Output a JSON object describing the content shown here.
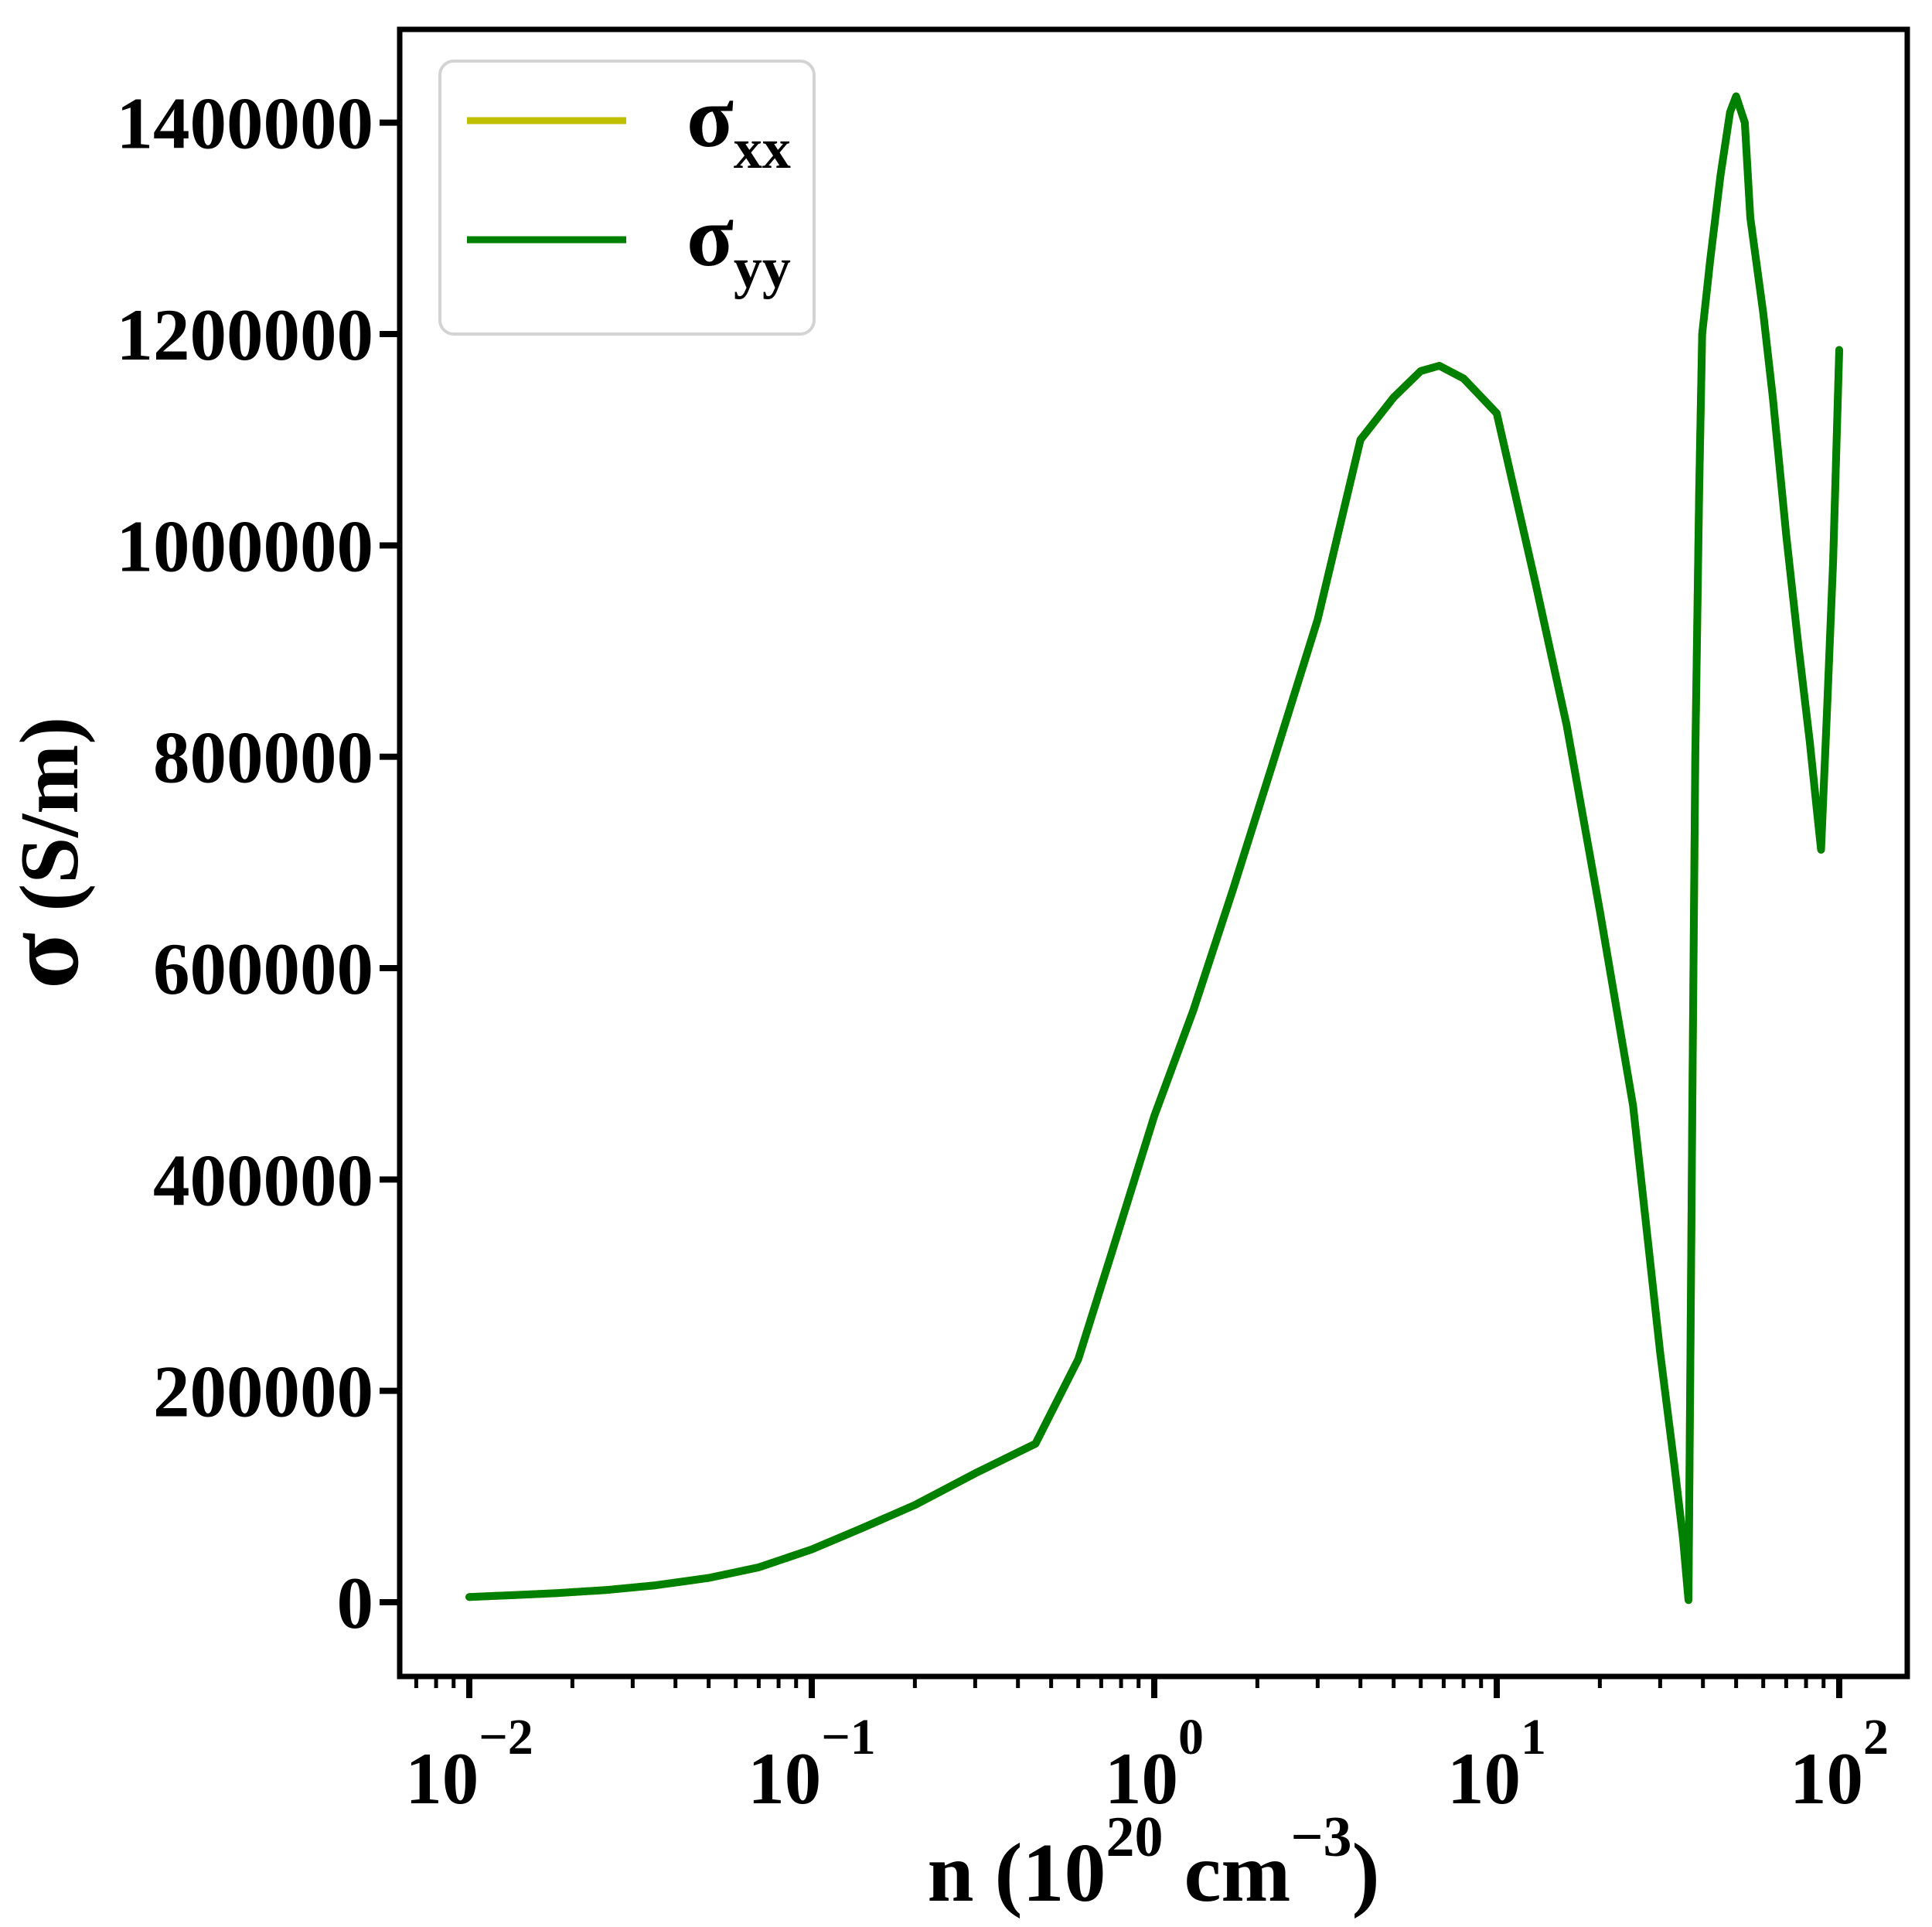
{
  "figure": {
    "background": "#ffffff",
    "title": ""
  },
  "chart_data": {
    "type": "line",
    "title": "",
    "xlabel_parts": {
      "main": "n (10",
      "sup1": "20",
      "mid": " cm",
      "sup2": "−3",
      "end": ")"
    },
    "xlabel_plain": "n (10^20 cm^-3)",
    "ylabel_parts": {
      "sigma": "σ",
      "rest": " (S/m)"
    },
    "ylabel_plain": "σ (S/m)",
    "x_scale": "log",
    "xlim": [
      0.0063,
      158
    ],
    "ylim": [
      -71000,
      1497000
    ],
    "grid": false,
    "x_ticks": [
      {
        "base": "10",
        "exp": "−2",
        "value": 0.01
      },
      {
        "base": "10",
        "exp": "−1",
        "value": 0.1
      },
      {
        "base": "10",
        "exp": "0",
        "value": 1
      },
      {
        "base": "10",
        "exp": "1",
        "value": 10
      },
      {
        "base": "10",
        "exp": "2",
        "value": 100
      }
    ],
    "x_minor_ticks": [
      0.007,
      0.008,
      0.009,
      0.02,
      0.03,
      0.04,
      0.05,
      0.06,
      0.07,
      0.08,
      0.09,
      0.2,
      0.3,
      0.4,
      0.5,
      0.6,
      0.7,
      0.8,
      0.9,
      2,
      3,
      4,
      5,
      6,
      7,
      8,
      9,
      20,
      30,
      40,
      50,
      60,
      70,
      80,
      90
    ],
    "y_ticks": [
      {
        "label": "0",
        "value": 0
      },
      {
        "label": "200000",
        "value": 200000
      },
      {
        "label": "400000",
        "value": 400000
      },
      {
        "label": "600000",
        "value": 600000
      },
      {
        "label": "800000",
        "value": 800000
      },
      {
        "label": "1000000",
        "value": 1000000
      },
      {
        "label": "1200000",
        "value": 1200000
      },
      {
        "label": "1400000",
        "value": 1400000
      }
    ],
    "legend": {
      "position": "upper left",
      "border_color": "#d3d3d3",
      "background": "#ffffff",
      "entries": [
        {
          "symbol": "σ",
          "subscript": "xx",
          "color": "#bfbf00"
        },
        {
          "symbol": "σ",
          "subscript": "yy",
          "color": "#008000"
        }
      ]
    },
    "note": "sigma_xx and sigma_yy curves coincide exactly; green sigma_yy is drawn on top of yellow sigma_xx",
    "series": [
      {
        "name": "sigma_xx",
        "color": "#bfbf00",
        "x": [
          0.01,
          0.013,
          0.018,
          0.025,
          0.035,
          0.05,
          0.07,
          0.1,
          0.14,
          0.2,
          0.3,
          0.45,
          0.6,
          0.75,
          1.0,
          1.3,
          1.7,
          2.2,
          3.0,
          4.0,
          5.0,
          6.0,
          6.8,
          8.0,
          10,
          13,
          16,
          20,
          25,
          30,
          33,
          35,
          36,
          36.3,
          36.8,
          37.3,
          38,
          39,
          39.8,
          42,
          45,
          48,
          50,
          53,
          55,
          60,
          64,
          70,
          76,
          82,
          86,
          88.5,
          92,
          96,
          100
        ],
        "y": [
          5000,
          6500,
          8600,
          11500,
          16000,
          23000,
          33000,
          50000,
          70000,
          92000,
          122000,
          150000,
          230000,
          330000,
          460000,
          560000,
          675000,
          790000,
          930000,
          1100000,
          1140000,
          1165000,
          1170000,
          1158000,
          1125000,
          963000,
          830000,
          654000,
          470000,
          236000,
          130000,
          60000,
          15000,
          2000,
          250000,
          500000,
          800000,
          1050000,
          1200000,
          1270000,
          1350000,
          1410000,
          1425000,
          1400000,
          1310000,
          1220000,
          1140000,
          1010000,
          905000,
          815000,
          750000,
          712000,
          840000,
          985000,
          1185000
        ]
      },
      {
        "name": "sigma_yy",
        "color": "#008000",
        "x": [
          0.01,
          0.013,
          0.018,
          0.025,
          0.035,
          0.05,
          0.07,
          0.1,
          0.14,
          0.2,
          0.3,
          0.45,
          0.6,
          0.75,
          1.0,
          1.3,
          1.7,
          2.2,
          3.0,
          4.0,
          5.0,
          6.0,
          6.8,
          8.0,
          10,
          13,
          16,
          20,
          25,
          30,
          33,
          35,
          36,
          36.3,
          36.8,
          37.3,
          38,
          39,
          39.8,
          42,
          45,
          48,
          50,
          53,
          55,
          60,
          64,
          70,
          76,
          82,
          86,
          88.5,
          92,
          96,
          100
        ],
        "y": [
          5000,
          6500,
          8600,
          11500,
          16000,
          23000,
          33000,
          50000,
          70000,
          92000,
          122000,
          150000,
          230000,
          330000,
          460000,
          560000,
          675000,
          790000,
          930000,
          1100000,
          1140000,
          1165000,
          1170000,
          1158000,
          1125000,
          963000,
          830000,
          654000,
          470000,
          236000,
          130000,
          60000,
          15000,
          2000,
          250000,
          500000,
          800000,
          1050000,
          1200000,
          1270000,
          1350000,
          1410000,
          1425000,
          1400000,
          1310000,
          1220000,
          1140000,
          1010000,
          905000,
          815000,
          750000,
          712000,
          840000,
          985000,
          1185000
        ]
      }
    ]
  }
}
